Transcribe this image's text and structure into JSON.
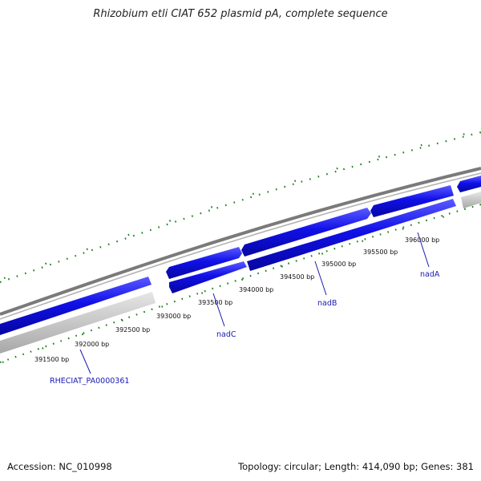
{
  "title": "Rhizobium etli CIAT 652 plasmid pA, complete sequence",
  "accession": "Accession: NC_010998",
  "summary": "Topology: circular; Length: 414,090 bp; Genes: 381",
  "colors": {
    "background": "#ffffff",
    "backbone": "#7a7a7a",
    "gene_blue": "#1010e8",
    "gene_gray": "#c4c4c4",
    "gc_skew_ticks": "#1f7f1f",
    "gene_label": "#1a1ab3"
  },
  "map": {
    "type": "circular-genome-map-zoomed",
    "position_labels": [
      "391500 bp",
      "392000 bp",
      "392500 bp",
      "393000 bp",
      "393500 bp",
      "394000 bp",
      "394500 bp",
      "395000 bp",
      "395500 bp",
      "396000 bp"
    ],
    "gene_labels": [
      {
        "name": "RHECIAT_PA0000361"
      },
      {
        "name": "nadC"
      },
      {
        "name": "nadB"
      },
      {
        "name": "nadA"
      }
    ]
  }
}
